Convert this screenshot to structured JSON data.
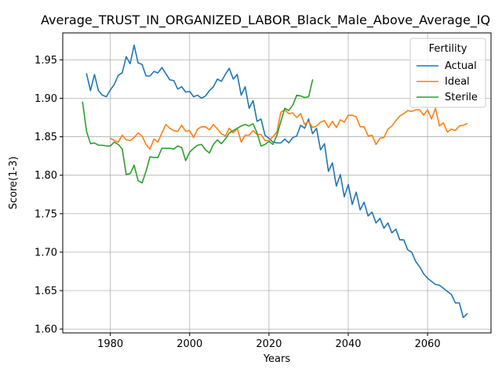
{
  "chart_data": {
    "type": "line",
    "title": "Average_TRUST_IN_ORGANIZED_LABOR_Black_Male_Above_Average_IQ",
    "xlabel": "Years",
    "ylabel": "Score(1-3)",
    "xlim": [
      1968,
      2076
    ],
    "ylim": [
      1.595,
      1.985
    ],
    "xticks": [
      1980,
      2000,
      2020,
      2040,
      2060
    ],
    "yticks": [
      1.6,
      1.65,
      1.7,
      1.75,
      1.8,
      1.85,
      1.9,
      1.95
    ],
    "grid": true,
    "legend": {
      "title": "Fertility",
      "position": "top-right"
    },
    "series": [
      {
        "name": "Actual",
        "color": "#1f77b4",
        "x": [
          1974,
          1975,
          1976,
          1977,
          1978,
          1979,
          1980,
          1981,
          1982,
          1983,
          1984,
          1985,
          1986,
          1987,
          1988,
          1989,
          1990,
          1991,
          1992,
          1993,
          1994,
          1995,
          1996,
          1997,
          1998,
          1999,
          2000,
          2001,
          2002,
          2003,
          2004,
          2005,
          2006,
          2007,
          2008,
          2009,
          2010,
          2011,
          2012,
          2013,
          2014,
          2015,
          2016,
          2017,
          2018,
          2019,
          2020,
          2021,
          2022,
          2023,
          2024,
          2025,
          2026,
          2027,
          2028,
          2029,
          2030,
          2031,
          2032,
          2033,
          2034,
          2035,
          2036,
          2037,
          2038,
          2039,
          2040,
          2041,
          2042,
          2043,
          2044,
          2045,
          2046,
          2047,
          2048,
          2049,
          2050,
          2051,
          2052,
          2053,
          2054,
          2055,
          2056,
          2057,
          2058,
          2059,
          2060,
          2061,
          2062,
          2063,
          2064,
          2065,
          2066,
          2067,
          2068,
          2069,
          2070
        ],
        "y": [
          1.932,
          1.91,
          1.931,
          1.91,
          1.904,
          1.902,
          1.911,
          1.918,
          1.93,
          1.933,
          1.954,
          1.945,
          1.969,
          1.946,
          1.944,
          1.929,
          1.929,
          1.935,
          1.933,
          1.94,
          1.932,
          1.924,
          1.923,
          1.912,
          1.915,
          1.908,
          1.909,
          1.902,
          1.904,
          1.9,
          1.903,
          1.91,
          1.915,
          1.925,
          1.922,
          1.931,
          1.939,
          1.925,
          1.931,
          1.904,
          1.915,
          1.887,
          1.897,
          1.87,
          1.873,
          1.852,
          1.848,
          1.843,
          1.842,
          1.842,
          1.847,
          1.842,
          1.849,
          1.851,
          1.865,
          1.861,
          1.873,
          1.854,
          1.861,
          1.833,
          1.841,
          1.805,
          1.816,
          1.786,
          1.801,
          1.772,
          1.788,
          1.762,
          1.778,
          1.755,
          1.765,
          1.747,
          1.752,
          1.738,
          1.744,
          1.731,
          1.738,
          1.725,
          1.73,
          1.716,
          1.716,
          1.703,
          1.7,
          1.688,
          1.681,
          1.672,
          1.666,
          1.662,
          1.658,
          1.657,
          1.653,
          1.649,
          1.645,
          1.634,
          1.634,
          1.615,
          1.62
        ]
      },
      {
        "name": "Ideal",
        "color": "#ff7f0e",
        "x": [
          1980,
          1981,
          1982,
          1983,
          1984,
          1985,
          1986,
          1987,
          1988,
          1989,
          1990,
          1991,
          1992,
          1993,
          1994,
          1995,
          1996,
          1997,
          1998,
          1999,
          2000,
          2001,
          2002,
          2003,
          2004,
          2005,
          2006,
          2007,
          2008,
          2009,
          2010,
          2011,
          2012,
          2013,
          2014,
          2015,
          2016,
          2017,
          2018,
          2019,
          2020,
          2021,
          2022,
          2023,
          2024,
          2025,
          2026,
          2027,
          2028,
          2029,
          2030,
          2031,
          2032,
          2033,
          2034,
          2035,
          2036,
          2037,
          2038,
          2039,
          2040,
          2041,
          2042,
          2043,
          2044,
          2045,
          2046,
          2047,
          2048,
          2049,
          2050,
          2051,
          2052,
          2053,
          2054,
          2055,
          2056,
          2057,
          2058,
          2059,
          2060,
          2061,
          2062,
          2063,
          2064,
          2065,
          2066,
          2067,
          2068,
          2069,
          2070
        ],
        "y": [
          1.848,
          1.845,
          1.843,
          1.852,
          1.846,
          1.845,
          1.849,
          1.855,
          1.851,
          1.84,
          1.834,
          1.847,
          1.843,
          1.855,
          1.866,
          1.861,
          1.858,
          1.857,
          1.865,
          1.857,
          1.858,
          1.849,
          1.86,
          1.863,
          1.863,
          1.859,
          1.866,
          1.86,
          1.854,
          1.851,
          1.861,
          1.855,
          1.861,
          1.843,
          1.852,
          1.852,
          1.858,
          1.853,
          1.853,
          1.845,
          1.845,
          1.85,
          1.856,
          1.882,
          1.885,
          1.88,
          1.881,
          1.875,
          1.88,
          1.866,
          1.87,
          1.862,
          1.864,
          1.869,
          1.871,
          1.862,
          1.87,
          1.862,
          1.872,
          1.869,
          1.878,
          1.878,
          1.876,
          1.863,
          1.863,
          1.851,
          1.852,
          1.84,
          1.848,
          1.849,
          1.86,
          1.864,
          1.871,
          1.877,
          1.88,
          1.884,
          1.883,
          1.885,
          1.885,
          1.878,
          1.885,
          1.873,
          1.887,
          1.864,
          1.868,
          1.856,
          1.86,
          1.858,
          1.864,
          1.865,
          1.867
        ]
      },
      {
        "name": "Sterile",
        "color": "#2ca02c",
        "x": [
          1973,
          1974,
          1975,
          1976,
          1977,
          1978,
          1979,
          1980,
          1981,
          1982,
          1983,
          1984,
          1985,
          1986,
          1987,
          1988,
          1989,
          1990,
          1991,
          1992,
          1993,
          1994,
          1995,
          1996,
          1997,
          1998,
          1999,
          2000,
          2001,
          2002,
          2003,
          2004,
          2005,
          2006,
          2007,
          2008,
          2009,
          2010,
          2011,
          2012,
          2013,
          2014,
          2015,
          2016,
          2017,
          2018,
          2019,
          2020,
          2021,
          2022,
          2023,
          2024,
          2025,
          2026,
          2027,
          2028,
          2029,
          2030,
          2031
        ],
        "y": [
          1.895,
          1.857,
          1.841,
          1.842,
          1.839,
          1.839,
          1.838,
          1.838,
          1.843,
          1.84,
          1.834,
          1.801,
          1.802,
          1.813,
          1.793,
          1.79,
          1.805,
          1.824,
          1.823,
          1.823,
          1.835,
          1.835,
          1.835,
          1.834,
          1.838,
          1.836,
          1.819,
          1.83,
          1.835,
          1.839,
          1.84,
          1.833,
          1.829,
          1.84,
          1.846,
          1.841,
          1.847,
          1.855,
          1.858,
          1.861,
          1.864,
          1.866,
          1.864,
          1.867,
          1.855,
          1.838,
          1.84,
          1.844,
          1.84,
          1.852,
          1.87,
          1.887,
          1.884,
          1.891,
          1.904,
          1.903,
          1.901,
          1.902,
          1.924
        ]
      }
    ]
  }
}
